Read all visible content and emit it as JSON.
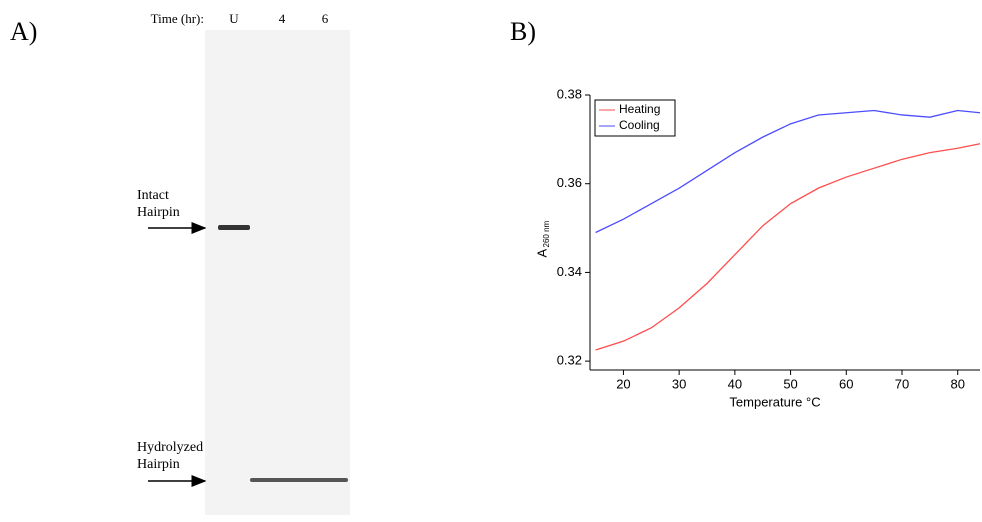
{
  "panels": [
    "A)",
    "B)"
  ],
  "gel": {
    "time_label": "Time (hr):",
    "lanes": [
      "U",
      "4",
      "6"
    ],
    "bands": [
      {
        "lines": [
          "Intact",
          "Hairpin"
        ]
      },
      {
        "lines": [
          "Hydrolyzed",
          "Hairpin"
        ]
      }
    ]
  },
  "chart_data": {
    "type": "line",
    "xlabel": "Temperature °C",
    "ylabel": "A",
    "ylabel_sub": "260 nm",
    "x": [
      15,
      20,
      25,
      30,
      35,
      40,
      45,
      50,
      55,
      60,
      65,
      70,
      75,
      80,
      84
    ],
    "series": [
      {
        "name": "Heating",
        "color": "#ff4d4d",
        "values": [
          0.3225,
          0.3245,
          0.3275,
          0.332,
          0.3375,
          0.344,
          0.3505,
          0.3555,
          0.359,
          0.3615,
          0.3635,
          0.3655,
          0.367,
          0.368,
          0.369
        ]
      },
      {
        "name": "Cooling",
        "color": "#4d4dff",
        "values": [
          0.349,
          0.352,
          0.3555,
          0.359,
          0.363,
          0.367,
          0.3705,
          0.3735,
          0.3755,
          0.376,
          0.3765,
          0.3755,
          0.375,
          0.3765,
          0.376
        ]
      }
    ],
    "xlim": [
      14,
      84
    ],
    "ylim": [
      0.318,
      0.38
    ],
    "xticks": [
      20,
      30,
      40,
      50,
      60,
      70,
      80
    ],
    "yticks": [
      0.32,
      0.34,
      0.36,
      0.38
    ],
    "legend": "upper-left"
  }
}
